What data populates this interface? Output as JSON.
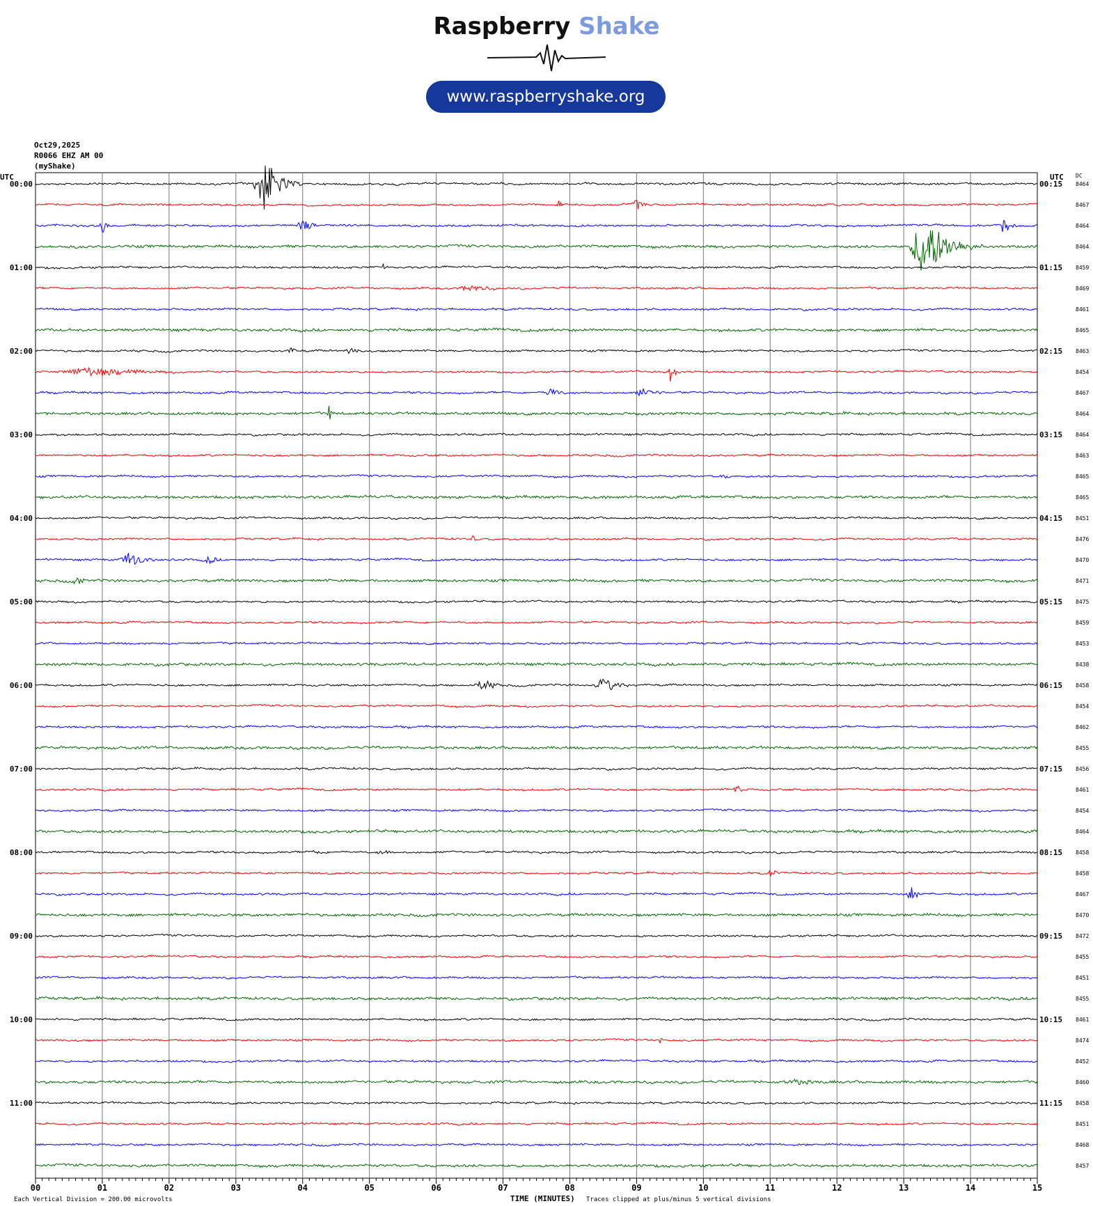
{
  "logo": {
    "word1": "Raspberry",
    "word2": "Shake",
    "url": "www.raspberryshake.org"
  },
  "header": {
    "date": "Oct29,2025",
    "station": "R0066 EHZ AM 00",
    "source": "(myShake)"
  },
  "left_axis_label": "UTC",
  "right_axis_label": "UTC",
  "dc_label": "DC",
  "footer": {
    "xlabel": "TIME (MINUTES)",
    "scale_note": "Each Vertical Division =  200.00 microvolts",
    "clip_note": "Traces clipped at plus/minus 5 vertical divisions"
  },
  "colors": {
    "trace_cycle": [
      "#000000",
      "#ff0000",
      "#0000ff",
      "#006400"
    ],
    "grid": "#000000"
  },
  "chart_data": {
    "type": "line",
    "title": "",
    "xlabel": "TIME (MINUTES)",
    "x_ticks": [
      "00",
      "01",
      "02",
      "03",
      "04",
      "05",
      "06",
      "07",
      "08",
      "09",
      "10",
      "11",
      "12",
      "13",
      "14",
      "15"
    ],
    "xlim": [
      0,
      15
    ],
    "row_minutes": 15,
    "left_labels": [
      "00:00",
      "01:00",
      "02:00",
      "03:00",
      "04:00",
      "05:00",
      "06:00",
      "07:00",
      "08:00",
      "09:00",
      "10:00",
      "11:00"
    ],
    "right_labels": [
      "00:15",
      "01:15",
      "02:15",
      "03:15",
      "04:15",
      "05:15",
      "06:15",
      "07:15",
      "08:15",
      "09:15",
      "10:15",
      "11:15"
    ],
    "dc_values": [
      "8464",
      "8467",
      "8464",
      "8464",
      "8459",
      "8469",
      "8461",
      "8465",
      "8463",
      "8454",
      "8467",
      "8464",
      "8464",
      "8463",
      "8465",
      "8465",
      "8451",
      "8476",
      "8470",
      "8471",
      "8475",
      "8459",
      "8453",
      "8438",
      "8458",
      "8454",
      "8462",
      "8455",
      "8456",
      "8461",
      "8454",
      "8464",
      "8458",
      "8458",
      "8467",
      "8470",
      "8472",
      "8455",
      "8451",
      "8455",
      "8461",
      "8474",
      "8452",
      "8460",
      "8458",
      "8451",
      "8468",
      "8457"
    ],
    "events": [
      {
        "row": 0,
        "minute": 3.4,
        "amp": 44,
        "dur": 0.6
      },
      {
        "row": 1,
        "minute": 7.8,
        "amp": 12,
        "dur": 0.15
      },
      {
        "row": 1,
        "minute": 9.0,
        "amp": 8,
        "dur": 0.3
      },
      {
        "row": 2,
        "minute": 1.0,
        "amp": 20,
        "dur": 0.15
      },
      {
        "row": 2,
        "minute": 4.0,
        "amp": 10,
        "dur": 0.4
      },
      {
        "row": 2,
        "minute": 14.5,
        "amp": 20,
        "dur": 0.2
      },
      {
        "row": 3,
        "minute": 13.3,
        "amp": 48,
        "dur": 0.9
      },
      {
        "row": 4,
        "minute": 5.2,
        "amp": 5,
        "dur": 0.1
      },
      {
        "row": 5,
        "minute": 6.5,
        "amp": 6,
        "dur": 0.8
      },
      {
        "row": 8,
        "minute": 3.8,
        "amp": 5,
        "dur": 0.4
      },
      {
        "row": 8,
        "minute": 4.7,
        "amp": 5,
        "dur": 0.4
      },
      {
        "row": 9,
        "minute": 0.8,
        "amp": 7,
        "dur": 2.2
      },
      {
        "row": 9,
        "minute": 9.5,
        "amp": 16,
        "dur": 0.2
      },
      {
        "row": 10,
        "minute": 7.7,
        "amp": 7,
        "dur": 0.5
      },
      {
        "row": 10,
        "minute": 9.1,
        "amp": 8,
        "dur": 0.6
      },
      {
        "row": 11,
        "minute": 4.4,
        "amp": 18,
        "dur": 0.1
      },
      {
        "row": 14,
        "minute": 10.3,
        "amp": 4,
        "dur": 0.3
      },
      {
        "row": 17,
        "minute": 6.55,
        "amp": 7,
        "dur": 0.1
      },
      {
        "row": 18,
        "minute": 1.4,
        "amp": 12,
        "dur": 0.6
      },
      {
        "row": 18,
        "minute": 2.6,
        "amp": 7,
        "dur": 0.3
      },
      {
        "row": 19,
        "minute": 0.6,
        "amp": 8,
        "dur": 0.3
      },
      {
        "row": 24,
        "minute": 6.7,
        "amp": 8,
        "dur": 0.6
      },
      {
        "row": 24,
        "minute": 8.5,
        "amp": 12,
        "dur": 0.6
      },
      {
        "row": 29,
        "minute": 10.5,
        "amp": 6,
        "dur": 0.3
      },
      {
        "row": 32,
        "minute": 4.2,
        "amp": 4,
        "dur": 0.5
      },
      {
        "row": 32,
        "minute": 5.2,
        "amp": 4,
        "dur": 0.5
      },
      {
        "row": 33,
        "minute": 11.0,
        "amp": 6,
        "dur": 0.3
      },
      {
        "row": 34,
        "minute": 13.1,
        "amp": 12,
        "dur": 0.3
      },
      {
        "row": 41,
        "minute": 9.35,
        "amp": 6,
        "dur": 0.1
      },
      {
        "row": 43,
        "minute": 11.4,
        "amp": 4,
        "dur": 1.5
      }
    ],
    "annotations": []
  }
}
